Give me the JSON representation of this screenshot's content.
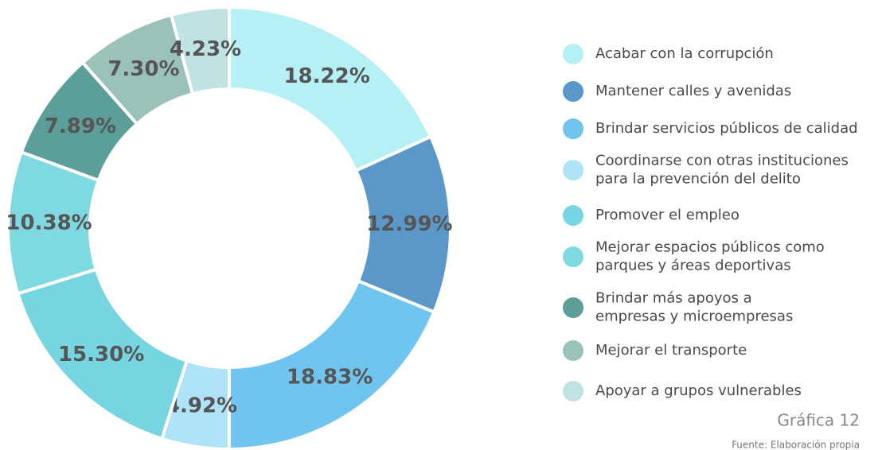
{
  "chart_data": {
    "type": "donut",
    "categories": [
      "Acabar con la corrupción",
      "Mantener calles y avenidas",
      "Brindar servicios públicos de calidad",
      "Coordinarse con otras instituciones\npara la prevención del delito",
      "Promover el empleo",
      "Mejorar espacios públicos como\nparques y áreas deportivas",
      "Brindar más apoyos a\nempresas y microempresas",
      "Mejorar el transporte",
      "Apoyar a grupos vulnerables"
    ],
    "values": [
      18.22,
      12.99,
      18.83,
      4.92,
      15.3,
      10.38,
      7.89,
      7.3,
      4.23
    ],
    "value_labels": [
      "18.22%",
      "12.99%",
      "18.83%",
      "4.92%",
      "15.30%",
      "10.38%",
      "7.89%",
      "7.30%",
      "4.23%"
    ],
    "colors": [
      "#b5f0f5",
      "#5b97c9",
      "#6fc5ef",
      "#aee3f8",
      "#76d5e0",
      "#7fd9e1",
      "#5c9e98",
      "#9bc1bb",
      "#bfe3e3"
    ],
    "legend": "right",
    "caption": "Gráfica 12",
    "source": "Fuente: Elaboración propia"
  }
}
